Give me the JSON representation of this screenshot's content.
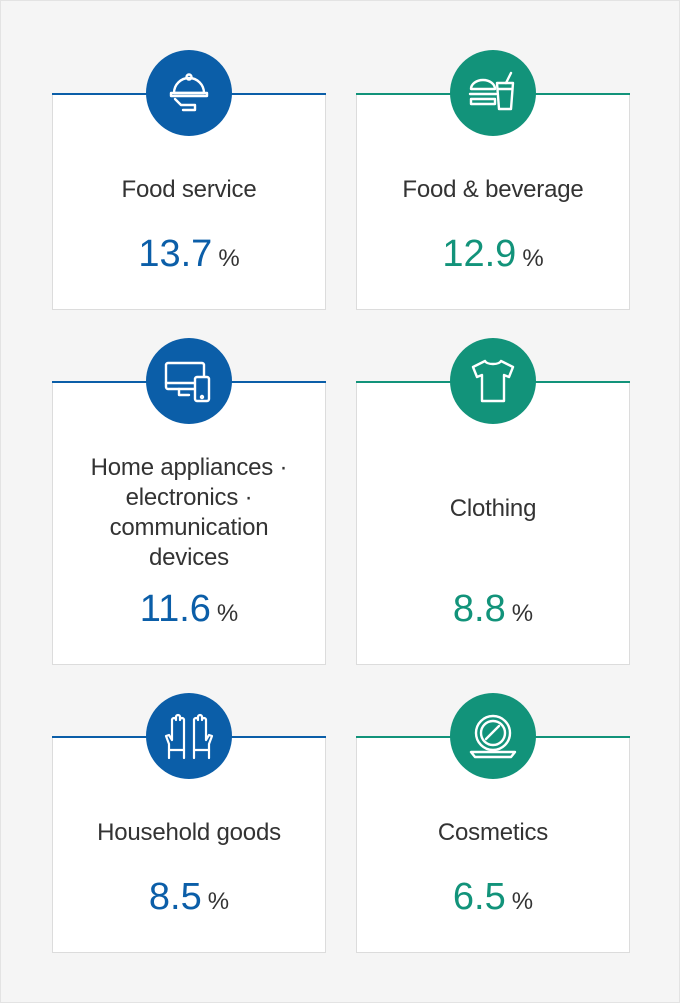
{
  "chart_data": {
    "type": "table",
    "unit": "%",
    "categories": [
      "Food service",
      "Food & beverage",
      "Home appliances · electronics · communication devices",
      "Clothing",
      "Household goods",
      "Cosmetics"
    ],
    "values": [
      13.7,
      12.9,
      11.6,
      8.8,
      8.5,
      6.5
    ]
  },
  "cards": [
    {
      "label": "Food service",
      "value": "13.7",
      "unit": "%",
      "icon": "food-cloche-icon",
      "color": "#0b5ea8"
    },
    {
      "label": "Food & beverage",
      "value": "12.9",
      "unit": "%",
      "icon": "burger-drink-icon",
      "color": "#12937a"
    },
    {
      "label_lines": [
        "Home appliances ·",
        "electronics ·",
        "communication",
        "devices"
      ],
      "value": "11.6",
      "unit": "%",
      "icon": "computer-phone-icon",
      "color": "#0b5ea8"
    },
    {
      "label": "Clothing",
      "value": "8.8",
      "unit": "%",
      "icon": "tshirt-icon",
      "color": "#12937a"
    },
    {
      "label": "Household goods",
      "value": "8.5",
      "unit": "%",
      "icon": "gloves-icon",
      "color": "#0b5ea8"
    },
    {
      "label": "Cosmetics",
      "value": "6.5",
      "unit": "%",
      "icon": "compact-mirror-icon",
      "color": "#12937a"
    }
  ]
}
